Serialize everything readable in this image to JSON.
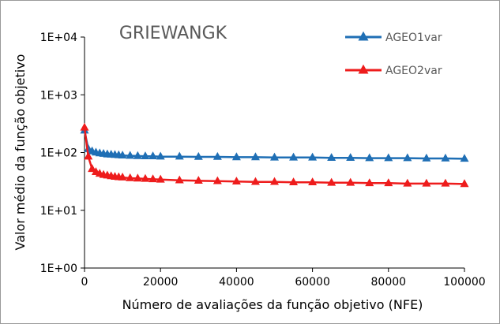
{
  "chart_data": {
    "type": "line",
    "title": "GRIEWANGK",
    "xlabel": "Número de avaliações da função objetivo (NFE)",
    "ylabel": "Valor médio da função objetivo",
    "yscale": "log",
    "xlim": [
      0,
      100000
    ],
    "ylim": [
      1,
      10000
    ],
    "xticks": [
      "0",
      "20000",
      "40000",
      "60000",
      "80000",
      "100000"
    ],
    "yticks": [
      "1E+00",
      "1E+01",
      "1E+02",
      "1E+03",
      "1E+04"
    ],
    "grid": false,
    "legend_position": "top-right",
    "series": [
      {
        "name": "AGEO1var",
        "color": "#1f6fb5",
        "x": [
          0,
          1000,
          2000,
          3000,
          4000,
          5000,
          6000,
          7000,
          8000,
          9000,
          10000,
          12000,
          14000,
          16000,
          18000,
          20000,
          25000,
          30000,
          35000,
          40000,
          45000,
          50000,
          55000,
          60000,
          65000,
          70000,
          75000,
          80000,
          85000,
          90000,
          95000,
          100000
        ],
        "y": [
          240,
          115,
          105,
          100,
          97,
          95,
          93,
          92,
          91,
          90,
          89,
          88,
          87,
          86,
          86,
          85,
          85,
          84,
          84,
          83,
          83,
          82,
          82,
          82,
          81,
          81,
          80,
          80,
          80,
          79,
          79,
          78
        ]
      },
      {
        "name": "AGEO2var",
        "color": "#ee1c1c",
        "x": [
          0,
          1000,
          2000,
          3000,
          4000,
          5000,
          6000,
          7000,
          8000,
          9000,
          10000,
          12000,
          14000,
          16000,
          18000,
          20000,
          25000,
          30000,
          35000,
          40000,
          45000,
          50000,
          55000,
          60000,
          65000,
          70000,
          75000,
          80000,
          85000,
          90000,
          95000,
          100000
        ],
        "y": [
          270,
          85,
          52,
          46,
          43,
          41,
          40,
          39,
          38,
          37.5,
          37,
          36,
          35.5,
          35,
          34.5,
          34,
          33,
          32.5,
          32,
          31.5,
          31,
          31,
          30.5,
          30.5,
          30,
          30,
          29.5,
          29.5,
          29,
          29,
          29,
          28.5
        ]
      }
    ]
  }
}
